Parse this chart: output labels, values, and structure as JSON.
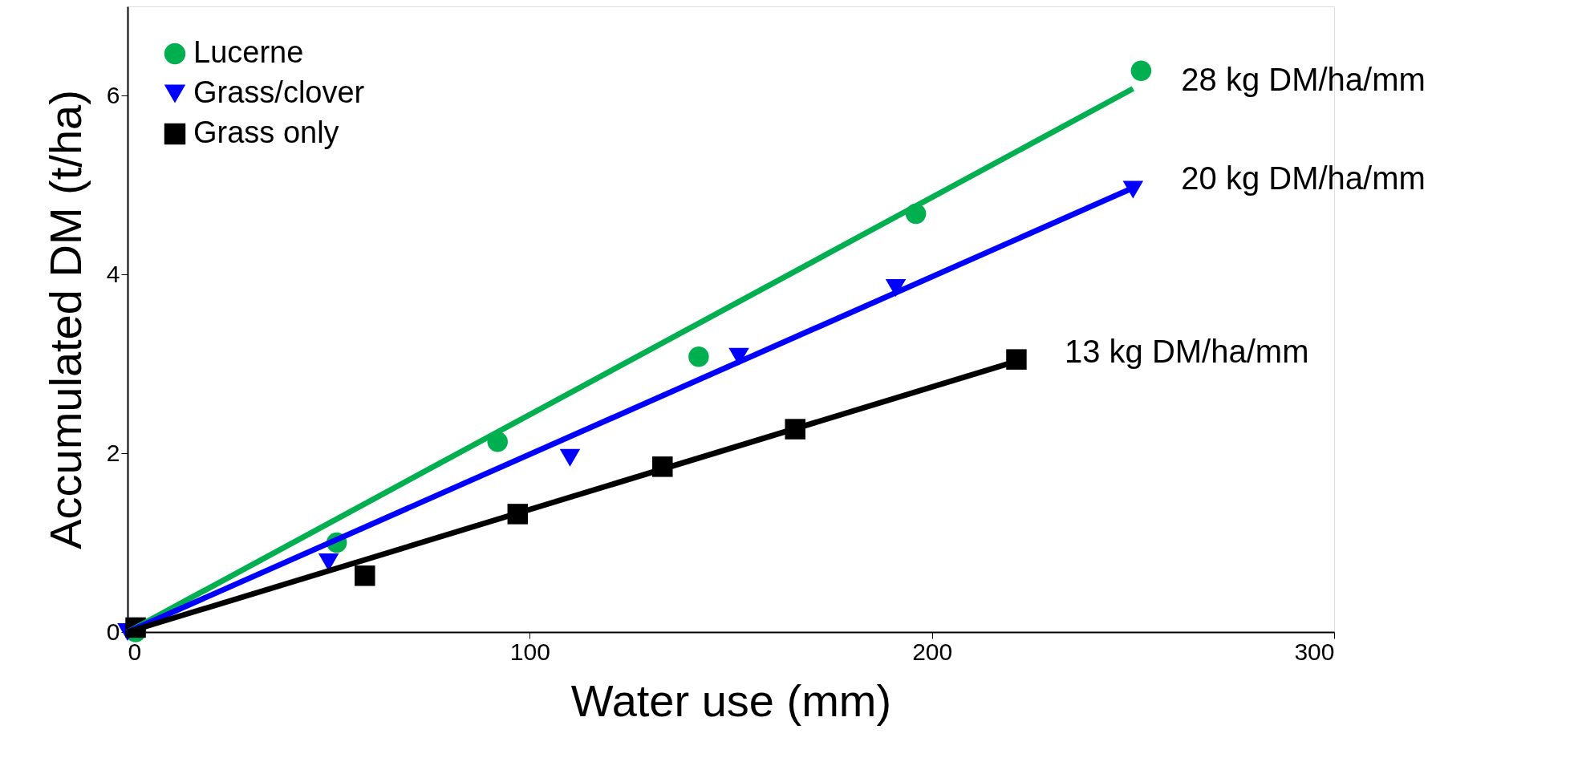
{
  "chart_data": {
    "type": "scatter",
    "xlabel": "Water use (mm)",
    "ylabel": "Accumulated DM (t/ha)",
    "xlim": [
      0,
      300
    ],
    "xticks": [
      0,
      100,
      200,
      300
    ],
    "ylim": [
      0,
      7
    ],
    "yticks": [
      0,
      2,
      4,
      6
    ],
    "grid": false,
    "legend": "top left",
    "series": [
      {
        "name": "Lucerne",
        "color": "#00b050",
        "marker": "circle",
        "x": [
          2,
          52,
          92,
          142,
          196,
          252
        ],
        "values": [
          0,
          1.0,
          2.13,
          3.08,
          4.68,
          6.28
        ]
      },
      {
        "name": "Grass/clover",
        "color": "#0000ff",
        "marker": "triangle-down",
        "x": [
          0,
          50,
          110,
          152,
          191,
          250
        ],
        "values": [
          0,
          0.78,
          1.95,
          3.08,
          3.85,
          4.95
        ]
      },
      {
        "name": "Grass only",
        "color": "#000000",
        "marker": "square",
        "x": [
          2,
          59,
          97,
          133,
          166,
          221
        ],
        "values": [
          0.05,
          0.63,
          1.32,
          1.85,
          2.27,
          3.05
        ]
      },
      {
        "type": "line",
        "color": "#00b050",
        "x": [
          0,
          250
        ],
        "values": [
          0,
          6.08
        ]
      },
      {
        "type": "line",
        "color": "#0000ff",
        "x": [
          0,
          250
        ],
        "values": [
          0,
          4.97
        ]
      },
      {
        "type": "line",
        "color": "#000000",
        "x": [
          0,
          221
        ],
        "values": [
          0,
          3.03
        ]
      }
    ],
    "annotations": [
      "28 kg DM/ha/mm",
      "20 kg DM/ha/mm",
      "13 kg DM/ha/mm"
    ]
  }
}
